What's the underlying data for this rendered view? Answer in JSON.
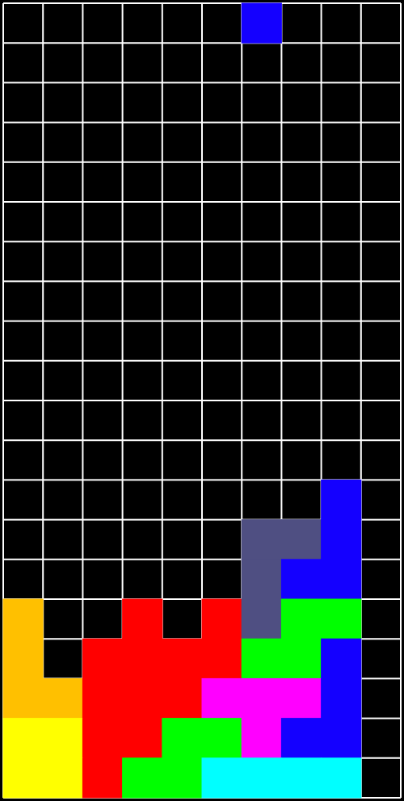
{
  "board": {
    "columns": 10,
    "rows": 20,
    "background": "#000000",
    "grid_color": "#ffffff",
    "cells": [
      {
        "row": 0,
        "col": 6,
        "color": "#1400ff"
      },
      {
        "row": 12,
        "col": 8,
        "color": "#1400ff"
      },
      {
        "row": 13,
        "col": 6,
        "color": "#4f4f82"
      },
      {
        "row": 13,
        "col": 7,
        "color": "#4f4f82"
      },
      {
        "row": 13,
        "col": 8,
        "color": "#1400ff"
      },
      {
        "row": 14,
        "col": 6,
        "color": "#4f4f82"
      },
      {
        "row": 14,
        "col": 7,
        "color": "#1400ff"
      },
      {
        "row": 14,
        "col": 8,
        "color": "#1400ff"
      },
      {
        "row": 15,
        "col": 0,
        "color": "#ffc000"
      },
      {
        "row": 15,
        "col": 3,
        "color": "#ff0000"
      },
      {
        "row": 15,
        "col": 5,
        "color": "#ff0000"
      },
      {
        "row": 15,
        "col": 6,
        "color": "#4f4f82"
      },
      {
        "row": 15,
        "col": 7,
        "color": "#00ff00"
      },
      {
        "row": 15,
        "col": 8,
        "color": "#00ff00"
      },
      {
        "row": 16,
        "col": 0,
        "color": "#ffc000"
      },
      {
        "row": 16,
        "col": 2,
        "color": "#ff0000"
      },
      {
        "row": 16,
        "col": 3,
        "color": "#ff0000"
      },
      {
        "row": 16,
        "col": 4,
        "color": "#ff0000"
      },
      {
        "row": 16,
        "col": 5,
        "color": "#ff0000"
      },
      {
        "row": 16,
        "col": 6,
        "color": "#00ff00"
      },
      {
        "row": 16,
        "col": 7,
        "color": "#00ff00"
      },
      {
        "row": 16,
        "col": 8,
        "color": "#1400ff"
      },
      {
        "row": 17,
        "col": 0,
        "color": "#ffc000"
      },
      {
        "row": 17,
        "col": 1,
        "color": "#ffc000"
      },
      {
        "row": 17,
        "col": 2,
        "color": "#ff0000"
      },
      {
        "row": 17,
        "col": 3,
        "color": "#ff0000"
      },
      {
        "row": 17,
        "col": 4,
        "color": "#ff0000"
      },
      {
        "row": 17,
        "col": 5,
        "color": "#ff00ff"
      },
      {
        "row": 17,
        "col": 6,
        "color": "#ff00ff"
      },
      {
        "row": 17,
        "col": 7,
        "color": "#ff00ff"
      },
      {
        "row": 17,
        "col": 8,
        "color": "#1400ff"
      },
      {
        "row": 18,
        "col": 0,
        "color": "#ffff00"
      },
      {
        "row": 18,
        "col": 1,
        "color": "#ffff00"
      },
      {
        "row": 18,
        "col": 2,
        "color": "#ff0000"
      },
      {
        "row": 18,
        "col": 3,
        "color": "#ff0000"
      },
      {
        "row": 18,
        "col": 4,
        "color": "#00ff00"
      },
      {
        "row": 18,
        "col": 5,
        "color": "#00ff00"
      },
      {
        "row": 18,
        "col": 6,
        "color": "#ff00ff"
      },
      {
        "row": 18,
        "col": 7,
        "color": "#1400ff"
      },
      {
        "row": 18,
        "col": 8,
        "color": "#1400ff"
      },
      {
        "row": 19,
        "col": 0,
        "color": "#ffff00"
      },
      {
        "row": 19,
        "col": 1,
        "color": "#ffff00"
      },
      {
        "row": 19,
        "col": 2,
        "color": "#ff0000"
      },
      {
        "row": 19,
        "col": 3,
        "color": "#00ff00"
      },
      {
        "row": 19,
        "col": 4,
        "color": "#00ff00"
      },
      {
        "row": 19,
        "col": 5,
        "color": "#00ffff"
      },
      {
        "row": 19,
        "col": 6,
        "color": "#00ffff"
      },
      {
        "row": 19,
        "col": 7,
        "color": "#00ffff"
      },
      {
        "row": 19,
        "col": 8,
        "color": "#00ffff"
      }
    ]
  }
}
